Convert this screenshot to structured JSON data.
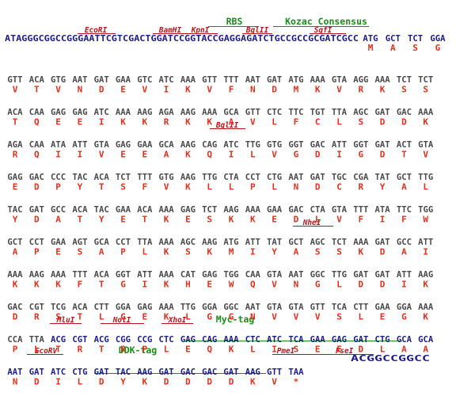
{
  "colors": {
    "dna_default": "#4a4a4a",
    "dna_highlight": "#1c1c8a",
    "amino_acid": "#e0301e",
    "restriction_site": "#b3171b",
    "feature_tag": "#1a8c1a"
  },
  "header": {
    "features": [
      {
        "label": "RBS"
      },
      {
        "label": "Kozac Consensus"
      }
    ],
    "sites": [
      {
        "label": "EcoRI"
      },
      {
        "label": "BamHI"
      },
      {
        "label": "KpnI"
      },
      {
        "label": "BglII"
      },
      {
        "label": "SgfI"
      }
    ],
    "leader_sequence": "ATAGGGCGGCCGGGAATTCGTCGACTGGATCCGGTACCGAGGAGATCTGCCGCCGCGATCGCC",
    "first_codons": [
      "ATG",
      "GCT",
      "TCT",
      "GGA"
    ],
    "first_aas": [
      "M",
      "A",
      "S",
      "G"
    ]
  },
  "rows": [
    {
      "codons": [
        "GTT",
        "ACA",
        "GTG",
        "AAT",
        "GAT",
        "GAA",
        "GTC",
        "ATC",
        "AAA",
        "GTT",
        "TTT",
        "AAT",
        "GAT",
        "ATG",
        "AAA",
        "GTA",
        "AGG",
        "AAA",
        "TCT",
        "TCT"
      ],
      "aas": [
        "V",
        "T",
        "V",
        "N",
        "D",
        "E",
        "V",
        "I",
        "K",
        "V",
        "F",
        "N",
        "D",
        "M",
        "K",
        "V",
        "R",
        "K",
        "S",
        "S"
      ]
    },
    {
      "codons": [
        "ACA",
        "CAA",
        "GAG",
        "GAG",
        "ATC",
        "AAA",
        "AAG",
        "AGA",
        "AAG",
        "AAA",
        "GCA",
        "GTT",
        "CTC",
        "TTC",
        "TGT",
        "TTA",
        "AGC",
        "GAT",
        "GAC",
        "AAA"
      ],
      "aas": [
        "T",
        "Q",
        "E",
        "E",
        "I",
        "K",
        "K",
        "R",
        "K",
        "K",
        "A",
        "V",
        "L",
        "F",
        "C",
        "L",
        "S",
        "D",
        "D",
        "K"
      ]
    },
    {
      "codons": [
        "AGA",
        "CAA",
        "ATA",
        "ATT",
        "GTA",
        "GAG",
        "GAA",
        "GCA",
        "AAG",
        "CAG",
        "ATC",
        "TTG",
        "GTG",
        "GGT",
        "GAC",
        "ATT",
        "GGT",
        "GAT",
        "ACT",
        "GTA"
      ],
      "aas": [
        "R",
        "Q",
        "I",
        "I",
        "V",
        "E",
        "E",
        "A",
        "K",
        "Q",
        "I",
        "L",
        "V",
        "G",
        "D",
        "I",
        "G",
        "D",
        "T",
        "V"
      ],
      "sites": [
        {
          "label": "BglII"
        }
      ]
    },
    {
      "codons": [
        "GAG",
        "GAC",
        "CCC",
        "TAC",
        "ACA",
        "TCT",
        "TTT",
        "GTG",
        "AAG",
        "TTG",
        "CTA",
        "CCT",
        "CTG",
        "AAT",
        "GAT",
        "TGC",
        "CGA",
        "TAT",
        "GCT",
        "TTG"
      ],
      "aas": [
        "E",
        "D",
        "P",
        "Y",
        "T",
        "S",
        "F",
        "V",
        "K",
        "L",
        "L",
        "P",
        "L",
        "N",
        "D",
        "C",
        "R",
        "Y",
        "A",
        "L"
      ]
    },
    {
      "codons": [
        "TAC",
        "GAT",
        "GCC",
        "ACA",
        "TAC",
        "GAA",
        "ACA",
        "AAA",
        "GAG",
        "TCT",
        "AAG",
        "AAA",
        "GAA",
        "GAC",
        "CTA",
        "GTA",
        "TTT",
        "ATA",
        "TTC",
        "TGG"
      ],
      "aas": [
        "Y",
        "D",
        "A",
        "T",
        "Y",
        "E",
        "T",
        "K",
        "E",
        "S",
        "K",
        "K",
        "E",
        "D",
        "L",
        "V",
        "F",
        "I",
        "F",
        "W"
      ]
    },
    {
      "codons": [
        "GCT",
        "CCT",
        "GAA",
        "AGT",
        "GCA",
        "CCT",
        "TTA",
        "AAA",
        "AGC",
        "AAG",
        "ATG",
        "ATT",
        "TAT",
        "GCT",
        "AGC",
        "TCT",
        "AAA",
        "GAT",
        "GCC",
        "ATT"
      ],
      "aas": [
        "A",
        "P",
        "E",
        "S",
        "A",
        "P",
        "L",
        "K",
        "S",
        "K",
        "M",
        "I",
        "Y",
        "A",
        "S",
        "S",
        "K",
        "D",
        "A",
        "I"
      ],
      "sites": [
        {
          "label": "NheI"
        }
      ]
    },
    {
      "codons": [
        "AAA",
        "AAG",
        "AAA",
        "TTT",
        "ACA",
        "GGT",
        "ATT",
        "AAA",
        "CAT",
        "GAG",
        "TGG",
        "CAA",
        "GTA",
        "AAT",
        "GGC",
        "TTG",
        "GAT",
        "GAT",
        "ATT",
        "AAG"
      ],
      "aas": [
        "K",
        "K",
        "K",
        "F",
        "T",
        "G",
        "I",
        "K",
        "H",
        "E",
        "W",
        "Q",
        "V",
        "N",
        "G",
        "L",
        "D",
        "D",
        "I",
        "K"
      ]
    },
    {
      "codons": [
        "GAC",
        "CGT",
        "TCG",
        "ACA",
        "CTT",
        "GGA",
        "GAG",
        "AAA",
        "TTG",
        "GGA",
        "GGC",
        "AAT",
        "GTA",
        "GTA",
        "GTT",
        "TCA",
        "CTT",
        "GAA",
        "GGA",
        "AAA"
      ],
      "aas": [
        "D",
        "R",
        "S",
        "T",
        "L",
        "G",
        "E",
        "K",
        "L",
        "G",
        "G",
        "N",
        "V",
        "V",
        "V",
        "S",
        "L",
        "E",
        "G",
        "K"
      ]
    },
    {
      "codons": [
        "CCA",
        "TTA",
        "ACG",
        "CGT",
        "ACG",
        "CGG",
        "CCG",
        "CTC",
        "GAG",
        "CAG",
        "AAA",
        "CTC",
        "ATC",
        "TCA",
        "GAA",
        "GAG",
        "GAT",
        "CTG",
        "GCA",
        "GCA"
      ],
      "aas": [
        "P",
        "L",
        "T",
        "R",
        "T",
        "R",
        "P",
        "L",
        "E",
        "Q",
        "K",
        "L",
        "I",
        "S",
        "E",
        "E",
        "D",
        "L",
        "A",
        "A"
      ],
      "sites": [
        {
          "label": "MluI"
        },
        {
          "label": "NotI"
        },
        {
          "label": "XhoI"
        }
      ],
      "features": [
        {
          "label": "Myc-tag"
        }
      ]
    }
  ],
  "last_row": {
    "codons": [
      "AAT",
      "GAT",
      "ATC",
      "CTG",
      "GAT",
      "TAC",
      "AAG",
      "GAT",
      "GAC",
      "GAC",
      "GAT",
      "AAG",
      "GTT",
      "TAA"
    ],
    "aas": [
      "N",
      "D",
      "I",
      "L",
      "D",
      "Y",
      "K",
      "D",
      "D",
      "D",
      "D",
      "K",
      "V",
      "*"
    ],
    "tail_sequence": "ACGGCCGGCC",
    "sites": [
      {
        "label": "EcoRV"
      },
      {
        "label": "PmeI"
      },
      {
        "label": "FseI"
      }
    ],
    "features": [
      {
        "label": "DDK-tag"
      }
    ]
  }
}
